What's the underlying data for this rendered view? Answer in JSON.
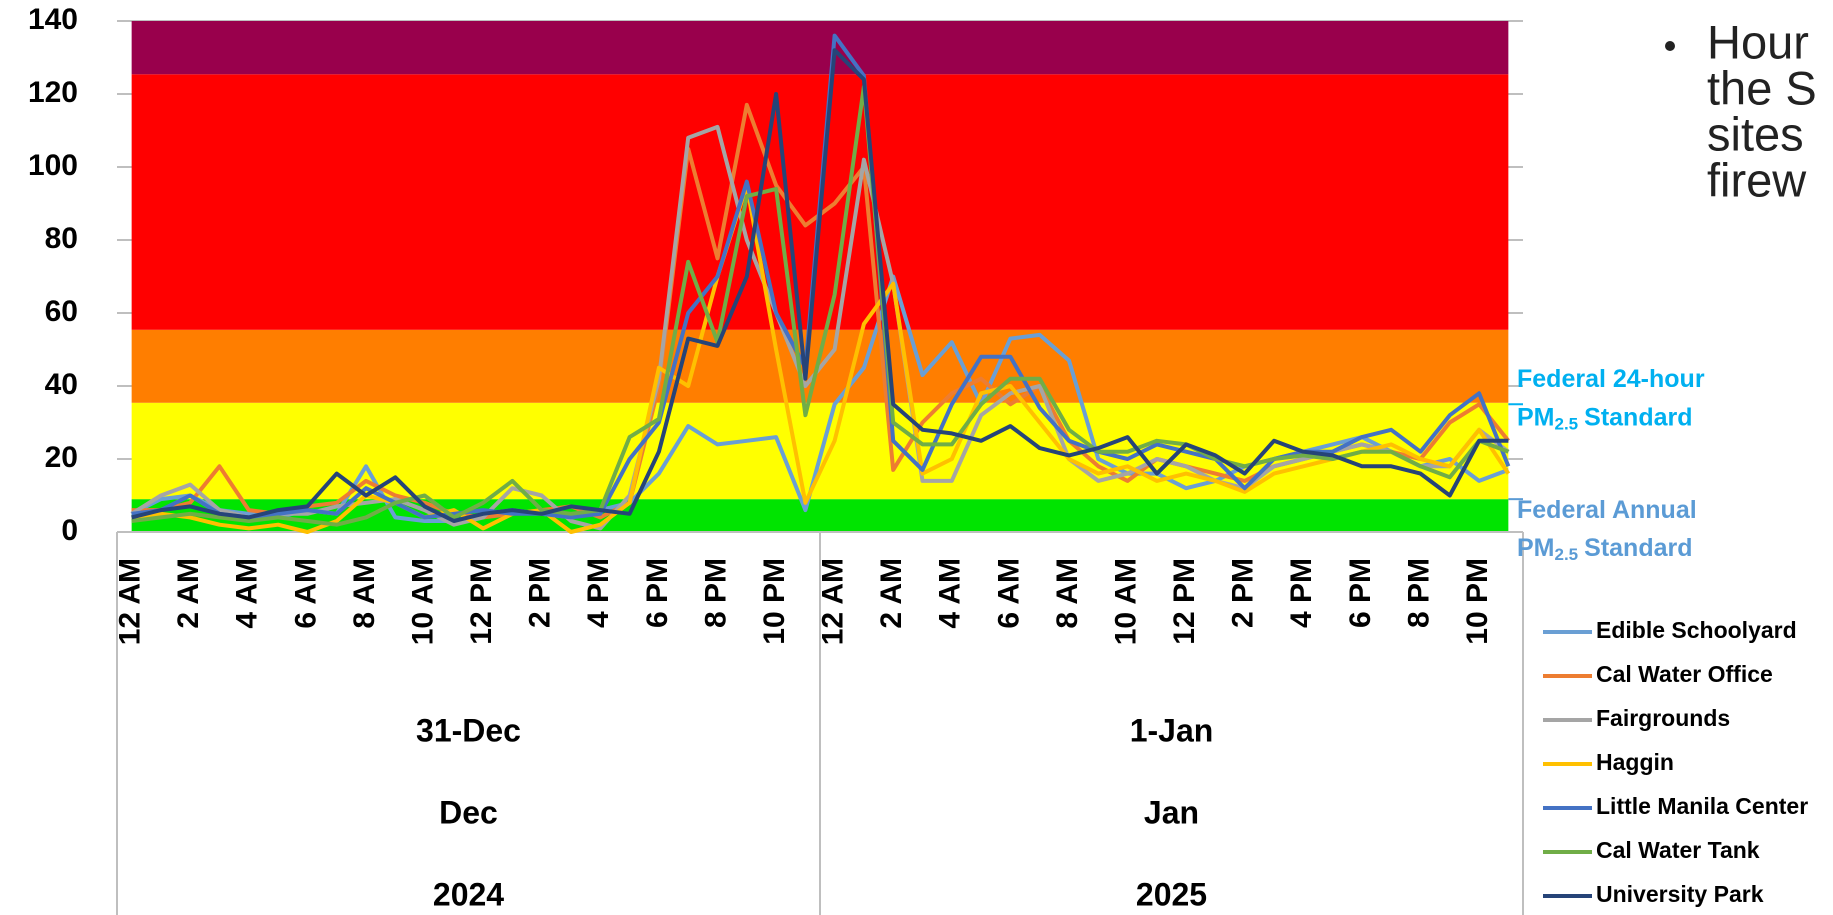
{
  "chart_data": {
    "type": "line",
    "categories": [
      "12 AM",
      null,
      "2 AM",
      null,
      "4 AM",
      null,
      "6 AM",
      null,
      "8 AM",
      null,
      "10 AM",
      null,
      "12 PM",
      null,
      "2 PM",
      null,
      "4 PM",
      null,
      "6 PM",
      null,
      "8 PM",
      null,
      "10 PM",
      null,
      "12 AM",
      null,
      "2 AM",
      null,
      "4 AM",
      null,
      "6 AM",
      null,
      "8 AM",
      null,
      "10 AM",
      null,
      "12 PM",
      null,
      "2 PM",
      null,
      "4 PM",
      null,
      "6 PM",
      null,
      "8 PM",
      null,
      "10 PM",
      null
    ],
    "x_levels": [
      [
        "31-Dec",
        "1-Jan"
      ],
      [
        "Dec",
        "Jan"
      ],
      [
        "2024",
        "2025"
      ]
    ],
    "ylim": [
      0,
      140
    ],
    "yticks": [
      0,
      20,
      40,
      60,
      80,
      100,
      120,
      140
    ],
    "grid": true,
    "bands": [
      {
        "from": 0,
        "to": 9,
        "color": "#00e400"
      },
      {
        "from": 9,
        "to": 35.4,
        "color": "#ffff00"
      },
      {
        "from": 35.4,
        "to": 55.4,
        "color": "#ff7e00"
      },
      {
        "from": 55.4,
        "to": 125.4,
        "color": "#ff0000"
      },
      {
        "from": 125.4,
        "to": 140,
        "color": "#99004c"
      }
    ],
    "annotations": [
      {
        "value": 35,
        "text": "Federal 24-hour",
        "pm": "PM",
        "sub": "2.5",
        "standard": "Standard",
        "color": "#00b0f0"
      },
      {
        "value": 9,
        "text": "Federal Annual",
        "pm": "PM",
        "sub": "2.5",
        "standard": "Standard",
        "color": "#5b9bd5"
      }
    ],
    "series": [
      {
        "name": "Edible Schoolyard",
        "color": "#6a9fd4",
        "values": [
          5,
          9,
          10,
          6,
          5,
          4,
          6,
          5,
          18,
          4,
          3,
          3,
          5,
          6,
          5,
          4,
          6,
          8,
          16,
          29,
          24,
          25,
          26,
          6,
          35,
          45,
          70,
          43,
          52,
          35,
          53,
          54,
          47,
          20,
          16,
          16,
          12,
          14,
          18,
          20,
          22,
          24,
          26,
          22,
          18,
          20,
          14,
          17
        ]
      },
      {
        "name": "Cal Water Office",
        "color": "#ed7d31",
        "values": [
          6,
          6,
          8,
          18,
          6,
          5,
          7,
          8,
          14,
          10,
          8,
          5,
          4,
          5,
          6,
          7,
          4,
          8,
          40,
          105,
          75,
          117,
          95,
          84,
          90,
          100,
          17,
          30,
          38,
          42,
          35,
          40,
          25,
          18,
          14,
          20,
          18,
          16,
          14,
          18,
          20,
          22,
          24,
          22,
          20,
          30,
          35,
          25
        ]
      },
      {
        "name": "Fairgrounds",
        "color": "#a5a5a5",
        "values": [
          5,
          10,
          13,
          6,
          4,
          5,
          5,
          7,
          8,
          9,
          6,
          2,
          4,
          12,
          10,
          3,
          1,
          10,
          42,
          108,
          111,
          80,
          60,
          40,
          50,
          102,
          68,
          14,
          14,
          32,
          38,
          40,
          20,
          14,
          16,
          20,
          18,
          14,
          12,
          18,
          20,
          22,
          24,
          22,
          18,
          18,
          28,
          22
        ]
      },
      {
        "name": "Haggin",
        "color": "#ffc000",
        "values": [
          4,
          5,
          4,
          2,
          1,
          2,
          0,
          3,
          10,
          8,
          4,
          6,
          1,
          5,
          6,
          0,
          2,
          8,
          45,
          40,
          70,
          95,
          50,
          8,
          25,
          57,
          68,
          16,
          20,
          38,
          40,
          30,
          20,
          16,
          18,
          14,
          16,
          14,
          11,
          16,
          18,
          20,
          22,
          24,
          20,
          18,
          28,
          16
        ]
      },
      {
        "name": "Little Manila Center",
        "color": "#4472c4",
        "values": [
          5,
          6,
          10,
          5,
          4,
          5,
          6,
          5,
          12,
          8,
          4,
          5,
          6,
          5,
          5,
          4,
          5,
          20,
          30,
          60,
          70,
          96,
          60,
          45,
          136,
          125,
          25,
          17,
          35,
          48,
          48,
          34,
          25,
          22,
          20,
          24,
          22,
          20,
          12,
          20,
          22,
          22,
          26,
          28,
          22,
          32,
          38,
          18
        ]
      },
      {
        "name": "Cal Water Tank",
        "color": "#70ad47",
        "values": [
          3,
          4,
          5,
          4,
          3,
          4,
          3,
          2,
          4,
          8,
          10,
          4,
          8,
          14,
          6,
          5,
          6,
          26,
          31,
          74,
          52,
          92,
          94,
          32,
          65,
          122,
          30,
          24,
          24,
          35,
          42,
          42,
          28,
          22,
          22,
          25,
          24,
          20,
          18,
          20,
          21,
          20,
          22,
          22,
          18,
          15,
          25,
          22
        ]
      },
      {
        "name": "University Park",
        "color": "#264478",
        "values": [
          4,
          6,
          7,
          5,
          4,
          6,
          7,
          16,
          10,
          15,
          7,
          3,
          5,
          6,
          5,
          7,
          6,
          5,
          22,
          53,
          51,
          70,
          120,
          42,
          132,
          124,
          35,
          28,
          27,
          25,
          29,
          23,
          21,
          23,
          26,
          16,
          24,
          21,
          16,
          25,
          22,
          21,
          18,
          18,
          16,
          10,
          25,
          25
        ]
      }
    ]
  },
  "bullet": {
    "lines": [
      "Hour",
      "the S",
      "sites",
      "firew"
    ]
  }
}
